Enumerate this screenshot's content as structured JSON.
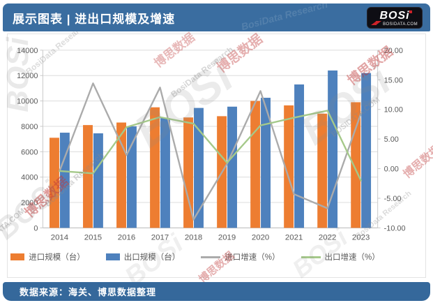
{
  "header": {
    "title": "展示图表 | 进出口规模及增速",
    "logo": {
      "text": "BOSi",
      "domain": "BOSIDATA.COM"
    }
  },
  "footer": {
    "source": "数据来源：海关、博思数据整理"
  },
  "watermark": {
    "brand": "BOSi",
    "cn": "博思数据",
    "en": "BosiData Research",
    "domain": "BOSIDATA.COM"
  },
  "colors": {
    "header_bg": "#3A6DA0",
    "footer_bg": "#35689B",
    "import_bar": "#ED7D31",
    "export_bar": "#4E81BD",
    "import_line": "#ABABAB",
    "export_line": "#A5C98A",
    "logo_red": "#CC2229",
    "axis_text": "#595959",
    "gridline": "#DCDCDC"
  },
  "chart_data": {
    "type": "bar+line",
    "title": "进出口规模及增速",
    "categories": [
      "2014",
      "2015",
      "2016",
      "2017",
      "2018",
      "2019",
      "2020",
      "2021",
      "2022",
      "2023"
    ],
    "series": [
      {
        "name": "进口规模（台）",
        "kind": "bar",
        "axis": "left",
        "color": "#ED7D31",
        "values": [
          7100,
          8100,
          8300,
          9500,
          8700,
          8800,
          10000,
          9650,
          9000,
          9900
        ]
      },
      {
        "name": "出口规模（台）",
        "kind": "bar",
        "axis": "left",
        "color": "#4E81BD",
        "values": [
          7500,
          7450,
          8000,
          8650,
          9450,
          9550,
          10250,
          11300,
          12400,
          12200
        ]
      },
      {
        "name": "进口增速（%）",
        "kind": "line",
        "axis": "right",
        "color": "#ABABAB",
        "values": [
          -0.4,
          14.4,
          2.3,
          13.7,
          -8.6,
          0.8,
          13.1,
          -4.3,
          -6.7,
          9.3
        ]
      },
      {
        "name": "出口增速（%）",
        "kind": "line",
        "axis": "right",
        "color": "#A5C98A",
        "values": [
          -0.4,
          -0.8,
          7.0,
          8.7,
          7.6,
          1.0,
          7.3,
          8.6,
          9.8,
          -2.0
        ]
      }
    ],
    "left_axis": {
      "min": 0,
      "max": 14000,
      "step": 2000,
      "tick_labels": [
        "0",
        "2000",
        "4000",
        "6000",
        "8000",
        "10000",
        "12000",
        "14000"
      ]
    },
    "right_axis": {
      "min": -10,
      "max": 20,
      "step": 5,
      "tick_labels": [
        "-10.00",
        "-5.00",
        "0.00",
        "5.00",
        "10.00",
        "15.00",
        "20.00"
      ]
    },
    "grid": true,
    "legend_position": "bottom"
  }
}
